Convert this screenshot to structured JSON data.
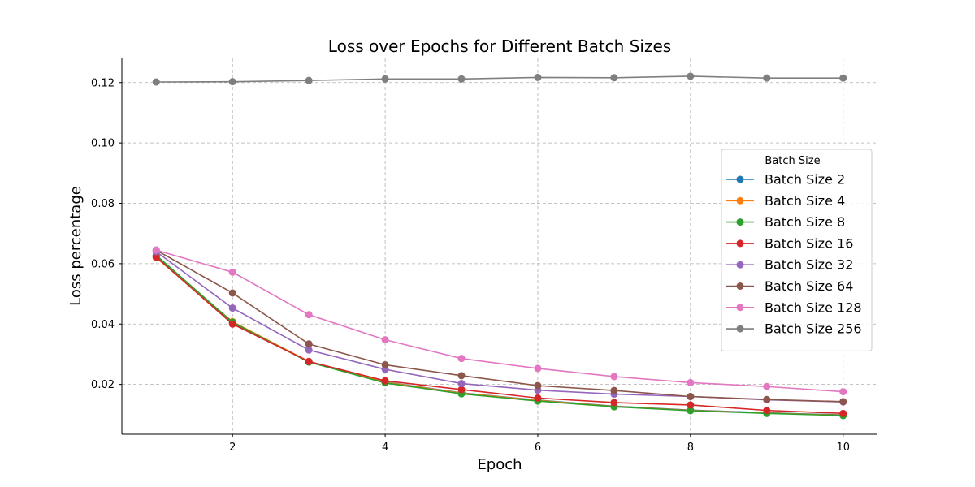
{
  "chart_data": {
    "type": "line",
    "title": "Loss over Epochs for Different Batch Sizes",
    "xlabel": "Epoch",
    "ylabel": "Loss percentage",
    "xlim": [
      0.55,
      10.45
    ],
    "ylim": [
      0.0035,
      0.128
    ],
    "xticks": [
      2,
      4,
      6,
      8,
      10
    ],
    "yticks": [
      0.02,
      0.04,
      0.06,
      0.08,
      0.1,
      0.12
    ],
    "ytick_labels": [
      "0.02",
      "0.04",
      "0.06",
      "0.08",
      "0.10",
      "0.12"
    ],
    "grid": true,
    "legend": {
      "title": "Batch Size",
      "placement": "center-right"
    },
    "x": [
      1,
      2,
      3,
      4,
      5,
      6,
      7,
      8,
      9,
      10
    ],
    "series": [
      {
        "name": "Batch Size 2",
        "color": "#1f77b4",
        "values": [
          0.0625,
          0.0405,
          0.0275,
          0.0208,
          0.0172,
          0.0148,
          0.0128,
          0.0115,
          0.0106,
          0.0099
        ]
      },
      {
        "name": "Batch Size 4",
        "color": "#ff7f0e",
        "values": [
          0.062,
          0.0408,
          0.0276,
          0.0207,
          0.0171,
          0.0147,
          0.0127,
          0.0114,
          0.0105,
          0.0098
        ]
      },
      {
        "name": "Batch Size 8",
        "color": "#2ca02c",
        "values": [
          0.0628,
          0.0406,
          0.0274,
          0.0205,
          0.0169,
          0.0145,
          0.0126,
          0.0113,
          0.0104,
          0.0097
        ]
      },
      {
        "name": "Batch Size 16",
        "color": "#d62728",
        "values": [
          0.0622,
          0.04,
          0.0276,
          0.0212,
          0.0183,
          0.0155,
          0.014,
          0.0132,
          0.0114,
          0.0104
        ]
      },
      {
        "name": "Batch Size 32",
        "color": "#9467bd",
        "values": [
          0.064,
          0.0453,
          0.0314,
          0.025,
          0.0203,
          0.0181,
          0.0168,
          0.016,
          0.0149,
          0.0142
        ]
      },
      {
        "name": "Batch Size 64",
        "color": "#8c564b",
        "values": [
          0.0645,
          0.0503,
          0.0334,
          0.0265,
          0.0229,
          0.0196,
          0.018,
          0.016,
          0.015,
          0.0143
        ]
      },
      {
        "name": "Batch Size 128",
        "color": "#e377c2",
        "values": [
          0.0645,
          0.0572,
          0.0431,
          0.0348,
          0.0286,
          0.0253,
          0.0226,
          0.0206,
          0.0193,
          0.0176
        ]
      },
      {
        "name": "Batch Size 256",
        "color": "#7f7f7f",
        "values": [
          0.1202,
          0.1203,
          0.1207,
          0.1212,
          0.1212,
          0.1217,
          0.1216,
          0.1221,
          0.1215,
          0.1215
        ]
      }
    ]
  }
}
